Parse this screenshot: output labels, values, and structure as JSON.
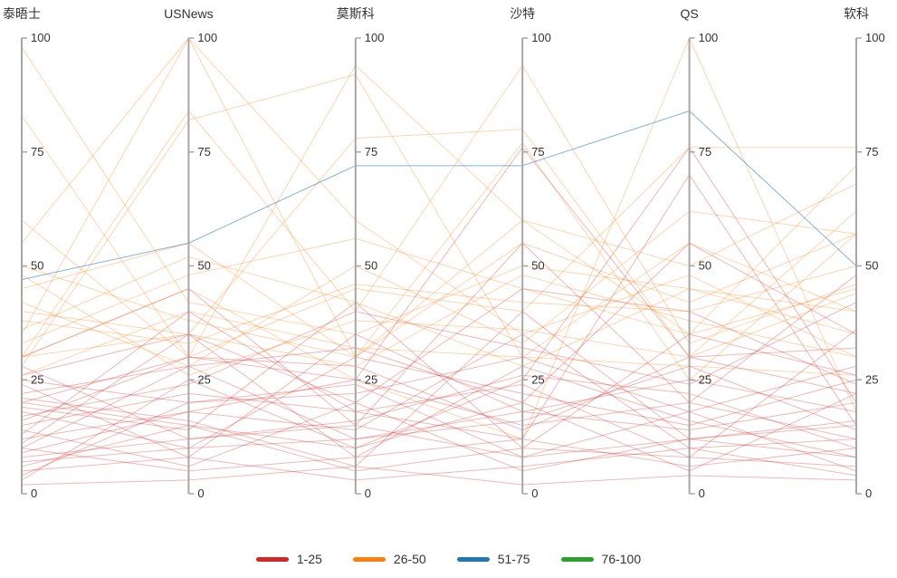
{
  "chart_data": {
    "type": "line",
    "subtype": "parallel-coordinates",
    "axes": [
      {
        "label": "泰晤士",
        "min": 0,
        "max": 100,
        "ticks": [
          0,
          25,
          50,
          75,
          100
        ]
      },
      {
        "label": "USNews",
        "min": 0,
        "max": 100,
        "ticks": [
          0,
          25,
          50,
          75,
          100
        ]
      },
      {
        "label": "莫斯科",
        "min": 0,
        "max": 100,
        "ticks": [
          0,
          25,
          50,
          75,
          100
        ]
      },
      {
        "label": "沙特",
        "min": 0,
        "max": 100,
        "ticks": [
          0,
          25,
          50,
          75,
          100
        ]
      },
      {
        "label": "QS",
        "min": 0,
        "max": 100,
        "ticks": [
          0,
          25,
          50,
          75,
          100
        ]
      },
      {
        "label": "软科",
        "min": 0,
        "max": 100,
        "ticks": [
          0,
          25,
          50,
          75,
          100
        ]
      }
    ],
    "legend": [
      {
        "label": "1-25",
        "color": "#d62728"
      },
      {
        "label": "26-50",
        "color": "#ff7f0e"
      },
      {
        "label": "51-75",
        "color": "#1f77b4"
      },
      {
        "label": "76-100",
        "color": "#2ca02c"
      }
    ],
    "series": [
      {
        "band": "1-25",
        "values": [
          20,
          15,
          10,
          25,
          76,
          20
        ]
      },
      {
        "band": "1-25",
        "values": [
          15,
          22,
          18,
          12,
          70,
          15
        ]
      },
      {
        "band": "1-25",
        "values": [
          10,
          5,
          8,
          12,
          6,
          10
        ]
      },
      {
        "band": "1-25",
        "values": [
          5,
          8,
          3,
          6,
          10,
          4
        ]
      },
      {
        "band": "1-25",
        "values": [
          2,
          3,
          6,
          2,
          4,
          3
        ]
      },
      {
        "band": "1-25",
        "values": [
          8,
          12,
          15,
          8,
          12,
          8
        ]
      },
      {
        "band": "1-25",
        "values": [
          12,
          18,
          25,
          15,
          20,
          12
        ]
      },
      {
        "band": "1-25",
        "values": [
          18,
          10,
          30,
          22,
          15,
          25
        ]
      },
      {
        "band": "1-25",
        "values": [
          22,
          28,
          12,
          18,
          25,
          18
        ]
      },
      {
        "band": "1-25",
        "values": [
          25,
          20,
          22,
          30,
          18,
          28
        ]
      },
      {
        "band": "1-25",
        "values": [
          6,
          15,
          5,
          10,
          8,
          6
        ]
      },
      {
        "band": "1-25",
        "values": [
          14,
          6,
          20,
          5,
          12,
          15
        ]
      },
      {
        "band": "1-25",
        "values": [
          3,
          25,
          10,
          20,
          5,
          22
        ]
      },
      {
        "band": "1-25",
        "values": [
          28,
          12,
          16,
          26,
          22,
          10
        ]
      },
      {
        "band": "1-25",
        "values": [
          16,
          30,
          28,
          14,
          30,
          32
        ]
      },
      {
        "band": "1-25",
        "values": [
          9,
          18,
          14,
          35,
          10,
          12
        ]
      },
      {
        "band": "1-25",
        "values": [
          24,
          8,
          35,
          18,
          14,
          20
        ]
      },
      {
        "band": "1-25",
        "values": [
          11,
          35,
          8,
          28,
          16,
          8
        ]
      },
      {
        "band": "1-25",
        "values": [
          19,
          14,
          42,
          10,
          35,
          26
        ]
      },
      {
        "band": "1-25",
        "values": [
          7,
          10,
          12,
          16,
          28,
          14
        ]
      },
      {
        "band": "1-25",
        "values": [
          13,
          40,
          18,
          24,
          8,
          36
        ]
      },
      {
        "band": "1-25",
        "values": [
          21,
          16,
          6,
          40,
          12,
          16
        ]
      },
      {
        "band": "1-25",
        "values": [
          4,
          20,
          24,
          8,
          18,
          5
        ]
      },
      {
        "band": "1-25",
        "values": [
          17,
          24,
          40,
          32,
          24,
          42
        ]
      },
      {
        "band": "1-25",
        "values": [
          26,
          35,
          20,
          45,
          40,
          24
        ]
      },
      {
        "band": "1-25",
        "values": [
          10,
          28,
          32,
          20,
          55,
          35
        ]
      },
      {
        "band": "1-25",
        "values": [
          30,
          45,
          15,
          55,
          20,
          48
        ]
      },
      {
        "band": "1-25",
        "values": [
          20,
          30,
          25,
          76,
          30,
          22
        ]
      },
      {
        "band": "26-50",
        "values": [
          98,
          42,
          35,
          50,
          45,
          40
        ]
      },
      {
        "band": "26-50",
        "values": [
          83,
          30,
          94,
          60,
          35,
          45
        ]
      },
      {
        "band": "26-50",
        "values": [
          55,
          100,
          60,
          35,
          48,
          30
        ]
      },
      {
        "band": "26-50",
        "values": [
          35,
          100,
          30,
          55,
          42,
          57
        ]
      },
      {
        "band": "26-50",
        "values": [
          30,
          84,
          40,
          94,
          33,
          46
        ]
      },
      {
        "band": "26-50",
        "values": [
          28,
          82,
          92,
          30,
          55,
          40
        ]
      },
      {
        "band": "26-50",
        "values": [
          40,
          35,
          78,
          80,
          30,
          62
        ]
      },
      {
        "band": "26-50",
        "values": [
          45,
          55,
          30,
          77,
          25,
          57
        ]
      },
      {
        "band": "26-50",
        "values": [
          30,
          45,
          25,
          12,
          100,
          18
        ]
      },
      {
        "band": "26-50",
        "values": [
          60,
          30,
          45,
          40,
          76,
          76
        ]
      },
      {
        "band": "26-50",
        "values": [
          33,
          48,
          56,
          45,
          35,
          72
        ]
      },
      {
        "band": "26-50",
        "values": [
          50,
          38,
          30,
          60,
          50,
          68
        ]
      },
      {
        "band": "26-50",
        "values": [
          42,
          28,
          50,
          33,
          62,
          57
        ]
      },
      {
        "band": "26-50",
        "values": [
          36,
          52,
          42,
          28,
          45,
          35
        ]
      },
      {
        "band": "26-50",
        "values": [
          30,
          35,
          28,
          48,
          38,
          30
        ]
      },
      {
        "band": "26-50",
        "values": [
          48,
          26,
          38,
          36,
          30,
          44
        ]
      },
      {
        "band": "26-50",
        "values": [
          26,
          40,
          32,
          30,
          28,
          26
        ]
      },
      {
        "band": "26-50",
        "values": [
          38,
          33,
          46,
          42,
          40,
          50
        ]
      },
      {
        "band": "51-75",
        "values": [
          47,
          55,
          72,
          72,
          84,
          50
        ]
      }
    ],
    "style": {
      "axis_color": "#a6a6a6",
      "text_color": "#333333",
      "line_opacity_warm": 0.33,
      "line_opacity_blue": 0.55
    },
    "ylim": [
      0,
      100
    ],
    "grid": false,
    "legend_position": "bottom"
  }
}
